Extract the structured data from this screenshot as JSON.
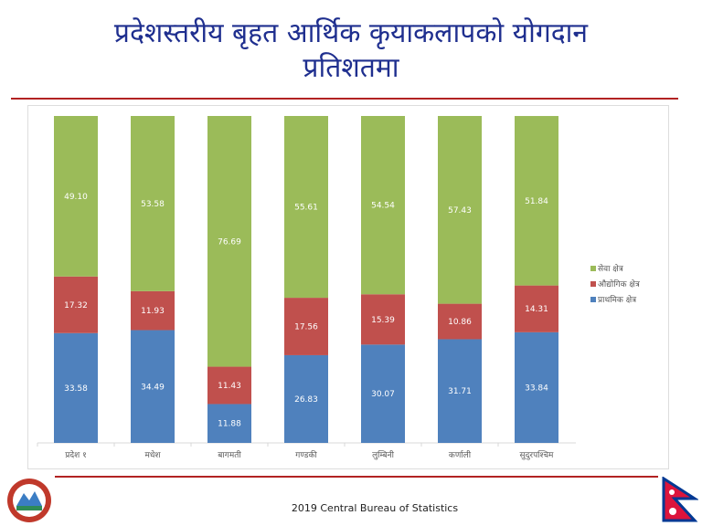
{
  "title_line1": "प्रदेशस्तरीय बृहत आर्थिक कृयाकलापको योगदान",
  "title_line2": "प्रतिशतमा",
  "footer": "2019 Central  Bureau of Statistics",
  "chart_data": {
    "type": "bar",
    "stacked": true,
    "categories": [
      "प्रदेश १",
      "मधेश",
      "बागमती",
      "गण्डकी",
      "लुम्बिनी",
      "कर्णाली",
      "सुदुरपश्चिम"
    ],
    "series": [
      {
        "name": "प्राथमिक क्षेत्र",
        "color": "#4f81bd",
        "values": [
          33.58,
          34.49,
          11.88,
          26.83,
          30.07,
          31.71,
          33.84
        ]
      },
      {
        "name": "औद्योगिक क्षेत्र",
        "color": "#c0504d",
        "values": [
          17.32,
          11.93,
          11.43,
          17.56,
          15.39,
          10.86,
          14.31
        ]
      },
      {
        "name": "सेवा क्षेत्र",
        "color": "#9bbb59",
        "values": [
          49.1,
          53.58,
          76.69,
          55.61,
          54.54,
          57.43,
          51.84
        ]
      }
    ],
    "ylim": [
      0,
      100
    ],
    "legend": "right",
    "grid": false
  }
}
